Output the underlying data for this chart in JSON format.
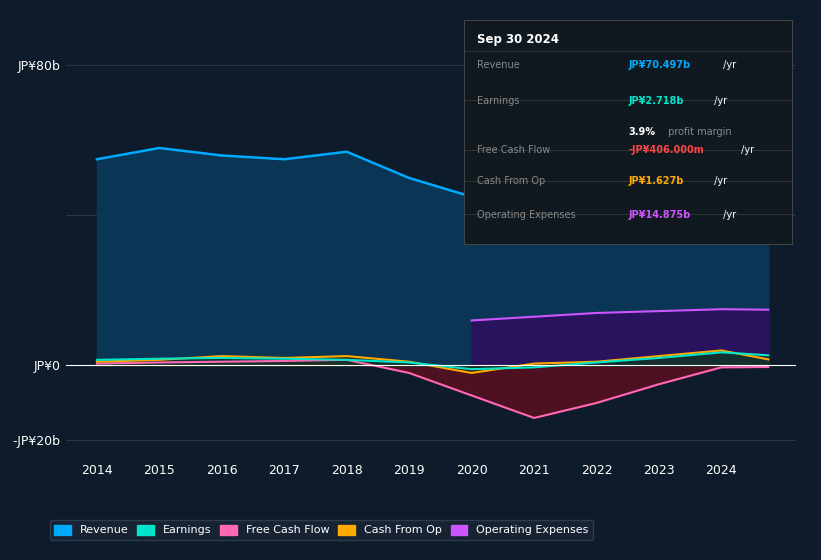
{
  "bg_color": "#0d1b2a",
  "plot_bg_color": "#0d1b2a",
  "years": [
    2014,
    2015,
    2016,
    2017,
    2018,
    2019,
    2020,
    2021,
    2022,
    2023,
    2024,
    2024.75
  ],
  "revenue": [
    55,
    58,
    56,
    55,
    57,
    50,
    45,
    46,
    49,
    60,
    73,
    70.497
  ],
  "earnings": [
    1.5,
    1.8,
    2.0,
    1.8,
    1.5,
    0.8,
    -1.0,
    -0.5,
    0.8,
    2.0,
    3.5,
    2.718
  ],
  "free_cash_flow": [
    0.5,
    0.8,
    1.0,
    1.2,
    1.5,
    -2.0,
    -8.0,
    -14.0,
    -10.0,
    -5.0,
    -0.5,
    -0.406
  ],
  "cash_from_op": [
    1.0,
    1.5,
    2.5,
    2.0,
    2.5,
    1.0,
    -2.0,
    0.5,
    1.0,
    2.5,
    4.0,
    1.627
  ],
  "operating_expenses": [
    0.0,
    0.0,
    0.0,
    0.0,
    0.0,
    0.0,
    12.0,
    13.0,
    14.0,
    14.5,
    15.0,
    14.875
  ],
  "revenue_color": "#00aaff",
  "revenue_fill": "#0a3a5c",
  "earnings_color": "#00e5cc",
  "earnings_fill": "#003a35",
  "free_cash_flow_color": "#ff69b4",
  "free_cash_flow_fill": "#5a1020",
  "cash_from_op_color": "#ffaa00",
  "cash_from_op_fill": "#3a2800",
  "op_expenses_color": "#cc55ff",
  "op_expenses_fill": "#2d1060",
  "ylim": [
    -25,
    90
  ],
  "xlabel_years": [
    2014,
    2015,
    2016,
    2017,
    2018,
    2019,
    2020,
    2021,
    2022,
    2023,
    2024
  ],
  "tooltip_title": "Sep 30 2024",
  "tooltip_rows": [
    {
      "label": "Revenue",
      "value": "JP¥70.497b",
      "color": "#00aaff",
      "unit": " /yr",
      "extra_val": null,
      "extra_label": null
    },
    {
      "label": "Earnings",
      "value": "JP¥2.718b",
      "color": "#00e5cc",
      "unit": " /yr",
      "extra_val": "3.9%",
      "extra_label": " profit margin"
    },
    {
      "label": "Free Cash Flow",
      "value": "-JP¥406.000m",
      "color": "#ff4444",
      "unit": " /yr",
      "extra_val": null,
      "extra_label": null
    },
    {
      "label": "Cash From Op",
      "value": "JP¥1.627b",
      "color": "#ffaa00",
      "unit": " /yr",
      "extra_val": null,
      "extra_label": null
    },
    {
      "label": "Operating Expenses",
      "value": "JP¥14.875b",
      "color": "#cc55ff",
      "unit": " /yr",
      "extra_val": null,
      "extra_label": null
    }
  ],
  "legend_labels": [
    "Revenue",
    "Earnings",
    "Free Cash Flow",
    "Cash From Op",
    "Operating Expenses"
  ],
  "legend_colors": [
    "#00aaff",
    "#00e5cc",
    "#ff69b4",
    "#ffaa00",
    "#cc55ff"
  ]
}
